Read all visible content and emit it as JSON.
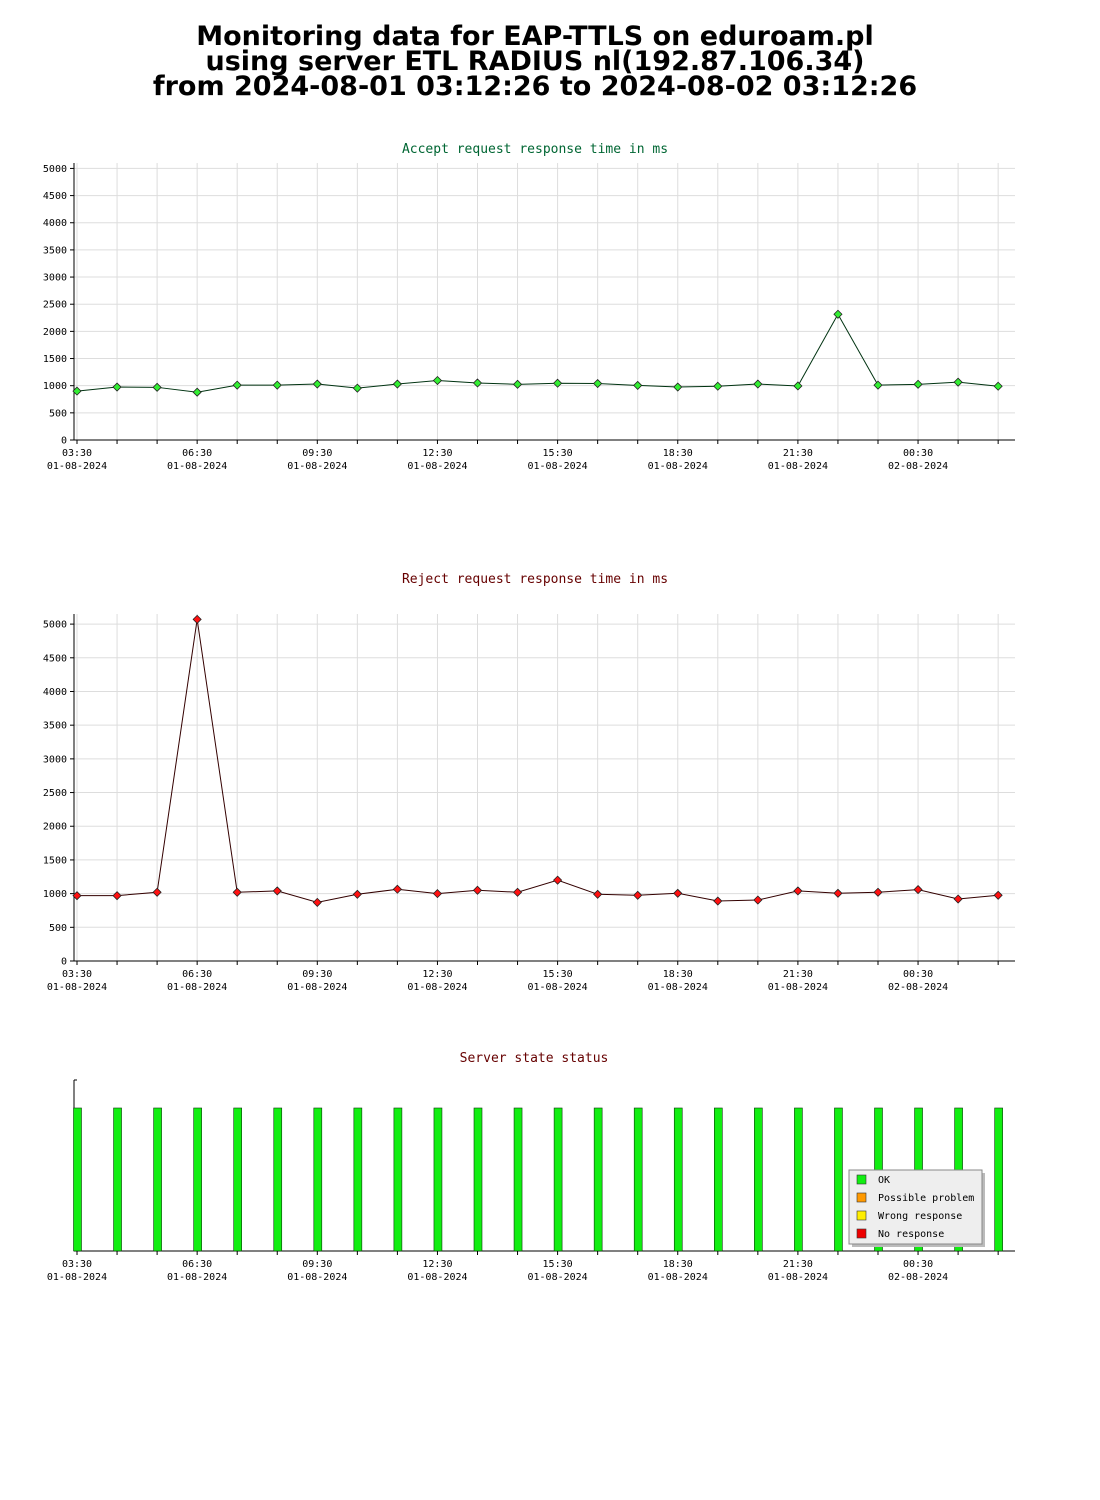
{
  "page": {
    "title_lines": [
      "Monitoring data for EAP-TTLS on eduroam.pl",
      "using server ETL RADIUS nl(192.87.106.34)",
      "from 2024-08-01 03:12:26 to 2024-08-02 03:12:26"
    ]
  },
  "colors": {
    "accept_title": "#006633",
    "reject_title": "#660000",
    "status_title": "#660000",
    "accept_marker": "#33ee33",
    "accept_line": "#003311",
    "reject_marker": "#ff1111",
    "reject_line": "#330000",
    "ok": "#11ee11",
    "possible_problem": "#ff9900",
    "wrong_response": "#ffee00",
    "no_response": "#ee0000"
  },
  "chart_data": [
    {
      "type": "line",
      "title": "Accept request response time in ms",
      "x_tick_labels": [
        [
          "03:30",
          "01-08-2024"
        ],
        [
          "06:30",
          "01-08-2024"
        ],
        [
          "09:30",
          "01-08-2024"
        ],
        [
          "12:30",
          "01-08-2024"
        ],
        [
          "15:30",
          "01-08-2024"
        ],
        [
          "18:30",
          "01-08-2024"
        ],
        [
          "21:30",
          "01-08-2024"
        ],
        [
          "00:30",
          "02-08-2024"
        ]
      ],
      "y_ticks": [
        0,
        500,
        1000,
        1500,
        2000,
        2500,
        3000,
        3500,
        4000,
        4500,
        5000
      ],
      "ylim": [
        0,
        5100
      ],
      "xlim": [
        "03:30",
        "03:30 next day"
      ],
      "grid": true,
      "series": [
        {
          "x": [
            "03:30",
            "04:30",
            "05:30",
            "06:30",
            "07:30",
            "08:30",
            "09:30",
            "10:30",
            "11:30",
            "12:30",
            "13:30",
            "14:30",
            "15:30",
            "16:30",
            "17:30",
            "18:30",
            "19:30",
            "20:30",
            "21:30",
            "22:30",
            "23:30",
            "00:30",
            "01:30",
            "02:30"
          ],
          "values": [
            900,
            975,
            970,
            880,
            1010,
            1010,
            1030,
            955,
            1030,
            1095,
            1050,
            1025,
            1045,
            1040,
            1005,
            975,
            990,
            1030,
            995,
            2315,
            1010,
            1025,
            1065,
            990
          ]
        }
      ]
    },
    {
      "type": "line",
      "title": "Reject request response time in ms",
      "x_tick_labels": [
        [
          "03:30",
          "01-08-2024"
        ],
        [
          "06:30",
          "01-08-2024"
        ],
        [
          "09:30",
          "01-08-2024"
        ],
        [
          "12:30",
          "01-08-2024"
        ],
        [
          "15:30",
          "01-08-2024"
        ],
        [
          "18:30",
          "01-08-2024"
        ],
        [
          "21:30",
          "01-08-2024"
        ],
        [
          "00:30",
          "02-08-2024"
        ]
      ],
      "y_ticks": [
        0,
        500,
        1000,
        1500,
        2000,
        2500,
        3000,
        3500,
        4000,
        4500,
        5000
      ],
      "ylim": [
        0,
        5150
      ],
      "xlim": [
        "03:30",
        "03:30 next day"
      ],
      "grid": true,
      "series": [
        {
          "x": [
            "03:30",
            "04:30",
            "05:30",
            "06:30",
            "07:30",
            "08:30",
            "09:30",
            "10:30",
            "11:30",
            "12:30",
            "13:30",
            "14:30",
            "15:30",
            "16:30",
            "17:30",
            "18:30",
            "19:30",
            "20:30",
            "21:30",
            "22:30",
            "23:30",
            "00:30",
            "01:30",
            "02:30"
          ],
          "values": [
            970,
            970,
            1020,
            5070,
            1020,
            1040,
            870,
            990,
            1065,
            1000,
            1050,
            1020,
            1200,
            990,
            975,
            1005,
            890,
            905,
            1040,
            1005,
            1020,
            1060,
            920,
            975
          ]
        }
      ]
    },
    {
      "type": "bar",
      "title": "Server state status",
      "x_tick_labels": [
        [
          "03:30",
          "01-08-2024"
        ],
        [
          "06:30",
          "01-08-2024"
        ],
        [
          "09:30",
          "01-08-2024"
        ],
        [
          "12:30",
          "01-08-2024"
        ],
        [
          "15:30",
          "01-08-2024"
        ],
        [
          "18:30",
          "01-08-2024"
        ],
        [
          "21:30",
          "01-08-2024"
        ],
        [
          "00:30",
          "02-08-2024"
        ]
      ],
      "categories": [
        "03:30",
        "04:30",
        "05:30",
        "06:30",
        "07:30",
        "08:30",
        "09:30",
        "10:30",
        "11:30",
        "12:30",
        "13:30",
        "14:30",
        "15:30",
        "16:30",
        "17:30",
        "18:30",
        "19:30",
        "20:30",
        "21:30",
        "22:30",
        "23:30",
        "00:30",
        "01:30",
        "02:30"
      ],
      "states": [
        "OK",
        "OK",
        "OK",
        "OK",
        "OK",
        "OK",
        "OK",
        "OK",
        "OK",
        "OK",
        "OK",
        "OK",
        "OK",
        "OK",
        "OK",
        "OK",
        "OK",
        "OK",
        "OK",
        "OK",
        "OK",
        "OK",
        "OK",
        "OK"
      ],
      "legend_position": "bottom-right",
      "legend": [
        {
          "label": "OK",
          "color_key": "ok"
        },
        {
          "label": "Possible problem",
          "color_key": "possible_problem"
        },
        {
          "label": "Wrong response",
          "color_key": "wrong_response"
        },
        {
          "label": "No response",
          "color_key": "no_response"
        }
      ]
    }
  ]
}
